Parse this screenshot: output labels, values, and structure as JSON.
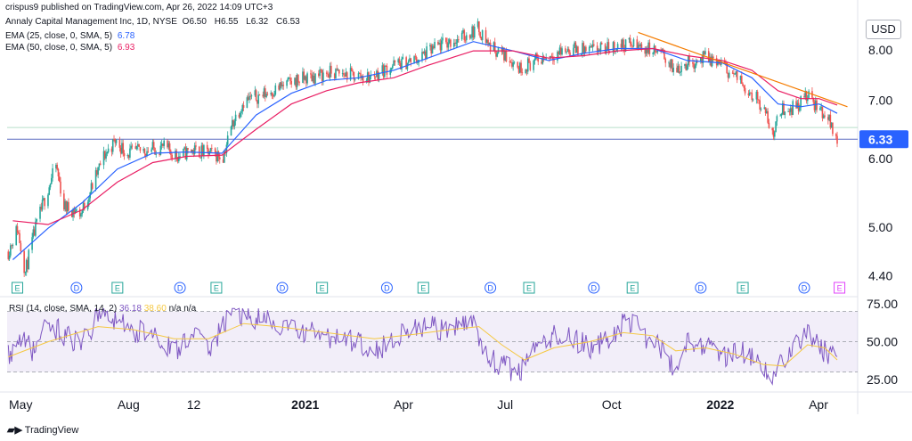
{
  "header": {
    "publisher": "crispus9 published on TradingView.com, Apr 26, 2022 14:09 UTC+3",
    "symbol": "Annaly Capital Management Inc, 1D, NYSE",
    "ohlc": {
      "O": "6.50",
      "H": "6.55",
      "L": "6.32",
      "C": "6.53"
    },
    "ema25_label": "EMA (25, close, 0, SMA, 5)",
    "ema25_value": "6.78",
    "ema50_label": "EMA (50, close, 0, SMA, 5)",
    "ema50_value": "6.93"
  },
  "currency_button": "USD",
  "branding": "TradingView",
  "colors": {
    "up": "#26a69a",
    "down": "#ef5350",
    "ema25": "#2962ff",
    "ema50": "#e91e63",
    "trendline": "#f57c00",
    "rsi": "#7e57c2",
    "rsi_ma": "#f5c842",
    "price_badge": "#2962ff"
  },
  "events": [
    {
      "label": "E",
      "x": "2020-05-05",
      "color": "#26a69a"
    },
    {
      "label": "D",
      "x": "2020-06-26",
      "color": "#2962ff"
    },
    {
      "label": "E",
      "x": "2020-08-01",
      "color": "#26a69a"
    },
    {
      "label": "D",
      "x": "2020-09-25",
      "color": "#2962ff"
    },
    {
      "label": "E",
      "x": "2020-10-27",
      "color": "#26a69a"
    },
    {
      "label": "D",
      "x": "2020-12-24",
      "color": "#2962ff"
    },
    {
      "label": "E",
      "x": "2021-01-28",
      "color": "#26a69a"
    },
    {
      "label": "D",
      "x": "2021-03-26",
      "color": "#2962ff"
    },
    {
      "label": "E",
      "x": "2021-04-27",
      "color": "#26a69a"
    },
    {
      "label": "D",
      "x": "2021-06-25",
      "color": "#2962ff"
    },
    {
      "label": "E",
      "x": "2021-07-29",
      "color": "#26a69a"
    },
    {
      "label": "D",
      "x": "2021-09-24",
      "color": "#2962ff"
    },
    {
      "label": "E",
      "x": "2021-10-28",
      "color": "#26a69a"
    },
    {
      "label": "D",
      "x": "2021-12-27",
      "color": "#2962ff"
    },
    {
      "label": "E",
      "x": "2022-02-02",
      "color": "#26a69a"
    },
    {
      "label": "D",
      "x": "2022-03-28",
      "color": "#2962ff"
    },
    {
      "label": "E",
      "x": "2022-04-28",
      "color": "#e040fb"
    }
  ],
  "chart_data": [
    {
      "type": "candlestick",
      "xlabel": "",
      "ylabel": "",
      "x_range": [
        "2020-04-26",
        "2022-05-14"
      ],
      "ylim": [
        4.2,
        8.9
      ],
      "y_scale": "log",
      "y_ticks": [
        "8.00",
        "7.00",
        "6.00",
        "5.00",
        "4.40"
      ],
      "x_tick_labels": [
        "May",
        "Aug",
        "12",
        "2021",
        "Apr",
        "Jul",
        "Oct",
        "2022",
        "Apr"
      ],
      "x_tick_dates": [
        "2020-05-01",
        "2020-08-01",
        "2020-10-01",
        "2021-01-01",
        "2021-04-01",
        "2021-07-01",
        "2021-10-01",
        "2022-01-01",
        "2022-04-01"
      ],
      "last_price": "6.33",
      "horizontal_lines": [
        6.33,
        6.53
      ],
      "trendline": {
        "from": {
          "x": "2021-11-02",
          "y": 8.4
        },
        "to": {
          "x": "2022-05-05",
          "y": 6.9
        }
      },
      "price_path": [
        [
          "2020-04-27",
          4.7
        ],
        [
          "2020-05-05",
          5.0
        ],
        [
          "2020-05-12",
          4.45
        ],
        [
          "2020-05-20",
          4.95
        ],
        [
          "2020-06-02",
          5.6
        ],
        [
          "2020-06-08",
          5.9
        ],
        [
          "2020-06-15",
          5.3
        ],
        [
          "2020-06-30",
          5.2
        ],
        [
          "2020-07-10",
          5.6
        ],
        [
          "2020-07-20",
          6.05
        ],
        [
          "2020-07-30",
          6.3
        ],
        [
          "2020-08-10",
          6.1
        ],
        [
          "2020-08-25",
          6.15
        ],
        [
          "2020-09-10",
          6.2
        ],
        [
          "2020-09-24",
          6.05
        ],
        [
          "2020-10-05",
          6.15
        ],
        [
          "2020-10-20",
          6.1
        ],
        [
          "2020-11-02",
          6.05
        ],
        [
          "2020-11-10",
          6.6
        ],
        [
          "2020-11-20",
          7.0
        ],
        [
          "2020-12-10",
          7.15
        ],
        [
          "2021-01-05",
          7.4
        ],
        [
          "2021-02-05",
          7.55
        ],
        [
          "2021-02-25",
          7.5
        ],
        [
          "2021-03-10",
          7.45
        ],
        [
          "2021-03-31",
          7.7
        ],
        [
          "2021-04-20",
          7.8
        ],
        [
          "2021-05-10",
          8.1
        ],
        [
          "2021-06-01",
          8.3
        ],
        [
          "2021-06-14",
          8.5
        ],
        [
          "2021-06-25",
          8.1
        ],
        [
          "2021-07-12",
          7.85
        ],
        [
          "2021-07-20",
          7.65
        ],
        [
          "2021-08-05",
          7.8
        ],
        [
          "2021-08-20",
          7.95
        ],
        [
          "2021-09-05",
          8.05
        ],
        [
          "2021-09-20",
          8.0
        ],
        [
          "2021-10-05",
          8.05
        ],
        [
          "2021-10-25",
          8.15
        ],
        [
          "2021-11-10",
          8.05
        ],
        [
          "2021-11-25",
          7.9
        ],
        [
          "2021-12-03",
          7.6
        ],
        [
          "2021-12-15",
          7.75
        ],
        [
          "2021-12-31",
          7.85
        ],
        [
          "2022-01-12",
          7.75
        ],
        [
          "2022-01-25",
          7.5
        ],
        [
          "2022-02-08",
          7.2
        ],
        [
          "2022-02-20",
          6.9
        ],
        [
          "2022-02-28",
          6.4
        ],
        [
          "2022-03-08",
          6.85
        ],
        [
          "2022-03-20",
          6.9
        ],
        [
          "2022-03-30",
          7.1
        ],
        [
          "2022-04-08",
          6.9
        ],
        [
          "2022-04-18",
          6.7
        ],
        [
          "2022-04-26",
          6.33
        ]
      ],
      "series": [
        {
          "name": "EMA (25, close, 0, SMA, 5)",
          "values": [
            [
              "2020-05-01",
              4.6
            ],
            [
              "2020-06-01",
              5.0
            ],
            [
              "2020-07-01",
              5.35
            ],
            [
              "2020-08-01",
              5.85
            ],
            [
              "2020-09-01",
              6.1
            ],
            [
              "2020-10-01",
              6.12
            ],
            [
              "2020-11-01",
              6.1
            ],
            [
              "2020-12-01",
              6.75
            ],
            [
              "2021-01-01",
              7.15
            ],
            [
              "2021-02-01",
              7.4
            ],
            [
              "2021-03-01",
              7.45
            ],
            [
              "2021-04-01",
              7.6
            ],
            [
              "2021-05-01",
              7.85
            ],
            [
              "2021-06-10",
              8.2
            ],
            [
              "2021-07-15",
              8.0
            ],
            [
              "2021-08-15",
              7.8
            ],
            [
              "2021-09-15",
              7.95
            ],
            [
              "2021-10-15",
              8.05
            ],
            [
              "2021-11-15",
              8.05
            ],
            [
              "2021-12-15",
              7.8
            ],
            [
              "2022-01-15",
              7.75
            ],
            [
              "2022-02-10",
              7.45
            ],
            [
              "2022-03-05",
              6.95
            ],
            [
              "2022-03-25",
              6.9
            ],
            [
              "2022-04-10",
              6.95
            ],
            [
              "2022-04-26",
              6.78
            ]
          ]
        },
        {
          "name": "EMA (50, close, 0, SMA, 5)",
          "values": [
            [
              "2020-05-01",
              5.1
            ],
            [
              "2020-06-01",
              5.05
            ],
            [
              "2020-07-01",
              5.25
            ],
            [
              "2020-08-01",
              5.65
            ],
            [
              "2020-09-01",
              5.95
            ],
            [
              "2020-10-01",
              6.05
            ],
            [
              "2020-11-01",
              6.07
            ],
            [
              "2020-12-01",
              6.5
            ],
            [
              "2021-01-01",
              6.95
            ],
            [
              "2021-02-01",
              7.2
            ],
            [
              "2021-03-01",
              7.35
            ],
            [
              "2021-04-01",
              7.45
            ],
            [
              "2021-05-01",
              7.7
            ],
            [
              "2021-06-10",
              8.0
            ],
            [
              "2021-07-15",
              8.0
            ],
            [
              "2021-08-15",
              7.85
            ],
            [
              "2021-09-15",
              7.9
            ],
            [
              "2021-10-15",
              8.0
            ],
            [
              "2021-11-15",
              8.05
            ],
            [
              "2021-12-15",
              7.9
            ],
            [
              "2022-01-15",
              7.8
            ],
            [
              "2022-02-10",
              7.6
            ],
            [
              "2022-03-05",
              7.2
            ],
            [
              "2022-03-25",
              7.05
            ],
            [
              "2022-04-10",
              7.05
            ],
            [
              "2022-04-26",
              6.93
            ]
          ]
        }
      ]
    },
    {
      "type": "line",
      "title": "RSI (14, close, SMA, 14, 2)",
      "legend_values": [
        "36.18",
        "38.60",
        "n/a",
        "n/a"
      ],
      "xlabel": "",
      "ylabel": "",
      "ylim": [
        18,
        78
      ],
      "y_ticks": [
        "75.00",
        "50.00",
        "25.00"
      ],
      "band": [
        30,
        70
      ],
      "mid_line": 50,
      "series": [
        {
          "name": "RSI",
          "values": [
            [
              "2020-04-27",
              40
            ],
            [
              "2020-05-10",
              55
            ],
            [
              "2020-05-20",
              42
            ],
            [
              "2020-06-01",
              62
            ],
            [
              "2020-06-15",
              55
            ],
            [
              "2020-07-01",
              48
            ],
            [
              "2020-07-15",
              68
            ],
            [
              "2020-08-01",
              65
            ],
            [
              "2020-08-15",
              55
            ],
            [
              "2020-09-01",
              58
            ],
            [
              "2020-09-20",
              42
            ],
            [
              "2020-10-05",
              56
            ],
            [
              "2020-10-20",
              45
            ],
            [
              "2020-11-10",
              70
            ],
            [
              "2020-12-01",
              65
            ],
            [
              "2021-01-01",
              58
            ],
            [
              "2021-01-20",
              55
            ],
            [
              "2021-02-10",
              52
            ],
            [
              "2021-03-01",
              50
            ],
            [
              "2021-03-20",
              45
            ],
            [
              "2021-04-10",
              58
            ],
            [
              "2021-05-01",
              60
            ],
            [
              "2021-05-20",
              55
            ],
            [
              "2021-06-10",
              68
            ],
            [
              "2021-06-20",
              40
            ],
            [
              "2021-07-10",
              32
            ],
            [
              "2021-07-20",
              30
            ],
            [
              "2021-08-05",
              45
            ],
            [
              "2021-08-20",
              55
            ],
            [
              "2021-09-10",
              50
            ],
            [
              "2021-09-25",
              45
            ],
            [
              "2021-10-10",
              55
            ],
            [
              "2021-10-25",
              65
            ],
            [
              "2021-11-10",
              52
            ],
            [
              "2021-11-25",
              45
            ],
            [
              "2021-12-03",
              30
            ],
            [
              "2021-12-15",
              52
            ],
            [
              "2021-12-31",
              48
            ],
            [
              "2022-01-15",
              40
            ],
            [
              "2022-02-01",
              45
            ],
            [
              "2022-02-20",
              30
            ],
            [
              "2022-02-28",
              24
            ],
            [
              "2022-03-10",
              40
            ],
            [
              "2022-03-25",
              52
            ],
            [
              "2022-03-31",
              60
            ],
            [
              "2022-04-10",
              45
            ],
            [
              "2022-04-20",
              42
            ],
            [
              "2022-04-26",
              36
            ]
          ]
        },
        {
          "name": "RSI-based MA",
          "values": [
            [
              "2020-04-27",
              40
            ],
            [
              "2020-06-01",
              50
            ],
            [
              "2020-07-15",
              60
            ],
            [
              "2020-08-15",
              58
            ],
            [
              "2020-09-20",
              52
            ],
            [
              "2020-10-20",
              52
            ],
            [
              "2020-11-20",
              62
            ],
            [
              "2020-12-20",
              60
            ],
            [
              "2021-02-01",
              56
            ],
            [
              "2021-03-15",
              52
            ],
            [
              "2021-04-20",
              55
            ],
            [
              "2021-05-20",
              58
            ],
            [
              "2021-06-15",
              60
            ],
            [
              "2021-07-05",
              48
            ],
            [
              "2021-07-25",
              38
            ],
            [
              "2021-08-20",
              46
            ],
            [
              "2021-09-20",
              50
            ],
            [
              "2021-10-20",
              56
            ],
            [
              "2021-11-15",
              54
            ],
            [
              "2021-12-05",
              44
            ],
            [
              "2021-12-31",
              46
            ],
            [
              "2022-01-25",
              42
            ],
            [
              "2022-02-20",
              35
            ],
            [
              "2022-03-10",
              34
            ],
            [
              "2022-03-31",
              48
            ],
            [
              "2022-04-15",
              46
            ],
            [
              "2022-04-26",
              38
            ]
          ]
        }
      ]
    }
  ]
}
